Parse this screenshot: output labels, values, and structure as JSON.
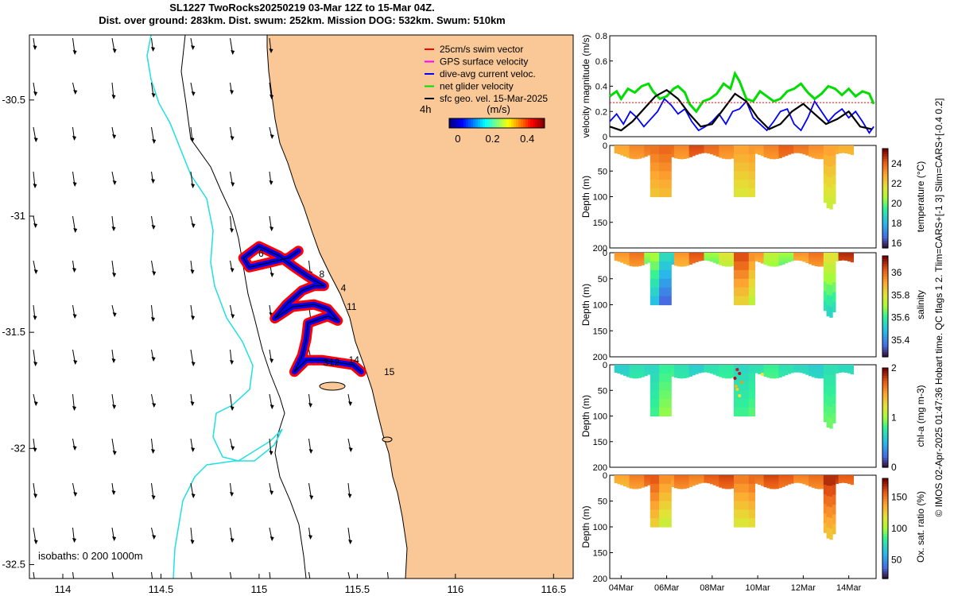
{
  "header": {
    "title_line1": "SL1227 TwoRocks20250219 03-Mar 12Z to 15-Mar 04Z.",
    "title_line2": "Dist. over ground: 283km. Dist. swum: 252km. Mission DOG: 532km. Swum: 510km"
  },
  "side_note": "© IMOS 02-Apr-2025 01:47:36 Hobart time. QC flags 1  2. Tlim=CARS+[-1 3] Slim=CARS+[-0.4 0.2]",
  "colors": {
    "land": "#f9c896",
    "isobath_0": "#000000",
    "isobath_200": "#000000",
    "isobath_1000": "#20e0e0",
    "swim_vector": "#ff0000",
    "gps_velocity": "#ff00ff",
    "dive_avg_current": "#0000ff",
    "net_glider_velocity": "#00dd00",
    "sfc_geo_vel": "#000000"
  },
  "chart_data": [
    {
      "type": "map",
      "name": "track_map",
      "x_ticks": [
        "114",
        "114.5",
        "115",
        "115.5",
        "116",
        "116.5"
      ],
      "x_tick_values": [
        114,
        114.5,
        115,
        115.5,
        116,
        116.5
      ],
      "xlim": [
        113.83,
        116.6
      ],
      "y_ticks": [
        "-30.5",
        "-31",
        "-31.5",
        "-32",
        "-32.5"
      ],
      "y_tick_values": [
        -30.5,
        -31,
        -31.5,
        -32,
        -32.5
      ],
      "ylim": [
        -32.56,
        -30.22
      ],
      "legend": [
        {
          "label": "25cm/s swim vector",
          "color": "#ff0000"
        },
        {
          "label": "GPS surface velocity",
          "color": "#ff00ff"
        },
        {
          "label": "dive-avg current veloc.",
          "color": "#0000ff"
        },
        {
          "label": "net glider velocity",
          "color": "#00dd00"
        },
        {
          "label": "sfc geo. vel. 15-Mar-2025",
          "color": "#000000"
        }
      ],
      "legend_position": "top-right",
      "scale_label": "4h",
      "colorbar": {
        "title": "(m/s)",
        "ticks": [
          "0",
          "0.2",
          "0.4"
        ],
        "tick_values": [
          0,
          0.2,
          0.4
        ],
        "range": [
          -0.05,
          0.5
        ]
      },
      "isobaths_label": "isobaths: 0   200  1000m",
      "day_labels": [
        {
          "text": "4",
          "lon": 115.4,
          "lat": -31.31
        },
        {
          "text": "6",
          "lon": 114.98,
          "lat": -31.16
        },
        {
          "text": "8",
          "lon": 115.29,
          "lat": -31.25
        },
        {
          "text": "11",
          "lon": 115.43,
          "lat": -31.39
        },
        {
          "text": "12",
          "lon": 115.34,
          "lat": -31.63
        },
        {
          "text": "3",
          "lon": 115.31,
          "lat": -31.63
        },
        {
          "text": "14",
          "lon": 115.44,
          "lat": -31.62
        },
        {
          "text": "15",
          "lon": 115.62,
          "lat": -31.67
        }
      ],
      "track": [
        [
          115.52,
          -31.67
        ],
        [
          115.48,
          -31.64
        ],
        [
          115.4,
          -31.63
        ],
        [
          115.32,
          -31.62
        ],
        [
          115.24,
          -31.62
        ],
        [
          115.18,
          -31.67
        ],
        [
          115.22,
          -31.6
        ],
        [
          115.24,
          -31.53
        ],
        [
          115.25,
          -31.46
        ],
        [
          115.35,
          -31.43
        ],
        [
          115.4,
          -31.45
        ],
        [
          115.35,
          -31.4
        ],
        [
          115.28,
          -31.38
        ],
        [
          115.17,
          -31.39
        ],
        [
          115.08,
          -31.44
        ],
        [
          115.14,
          -31.38
        ],
        [
          115.22,
          -31.32
        ],
        [
          115.28,
          -31.3
        ],
        [
          115.33,
          -31.3
        ],
        [
          115.25,
          -31.26
        ],
        [
          115.18,
          -31.22
        ],
        [
          115.1,
          -31.17
        ],
        [
          115.0,
          -31.13
        ],
        [
          114.92,
          -31.18
        ],
        [
          114.95,
          -31.22
        ],
        [
          115.05,
          -31.2
        ],
        [
          115.15,
          -31.18
        ],
        [
          115.2,
          -31.15
        ]
      ]
    },
    {
      "type": "line",
      "name": "velocity_magnitude",
      "ylabel": "velocity magnitude (m/s)",
      "ylim": [
        0,
        0.8
      ],
      "y_ticks": [
        "0",
        "0.2",
        "0.4",
        "0.6",
        "0.8"
      ],
      "y_tick_values": [
        0,
        0.2,
        0.4,
        0.6,
        0.8
      ],
      "x_range_days": [
        3.5,
        15.2
      ],
      "series": [
        {
          "name": "net glider velocity",
          "color": "#00dd00",
          "x": [
            3.5,
            3.8,
            4.0,
            4.3,
            4.6,
            4.9,
            5.2,
            5.4,
            5.7,
            6.0,
            6.3,
            6.5,
            6.8,
            7.0,
            7.3,
            7.6,
            7.9,
            8.2,
            8.5,
            8.8,
            9.0,
            9.2,
            9.5,
            9.8,
            10.1,
            10.4,
            10.7,
            11.0,
            11.3,
            11.6,
            11.9,
            12.2,
            12.5,
            12.8,
            13.1,
            13.4,
            13.7,
            14.0,
            14.3,
            14.6,
            14.9,
            15.1
          ],
          "values": [
            0.32,
            0.36,
            0.3,
            0.38,
            0.35,
            0.4,
            0.42,
            0.36,
            0.3,
            0.32,
            0.38,
            0.4,
            0.35,
            0.26,
            0.2,
            0.28,
            0.3,
            0.34,
            0.42,
            0.38,
            0.5,
            0.44,
            0.3,
            0.28,
            0.36,
            0.32,
            0.28,
            0.3,
            0.36,
            0.38,
            0.42,
            0.35,
            0.3,
            0.34,
            0.4,
            0.38,
            0.33,
            0.38,
            0.32,
            0.36,
            0.34,
            0.26
          ]
        },
        {
          "name": "dive-avg current veloc.",
          "color": "#0000ff",
          "x": [
            3.5,
            3.8,
            4.1,
            4.4,
            4.7,
            5.0,
            5.3,
            5.6,
            5.9,
            6.2,
            6.5,
            6.8,
            7.1,
            7.4,
            7.7,
            8.0,
            8.3,
            8.6,
            8.9,
            9.2,
            9.5,
            9.8,
            10.1,
            10.4,
            10.7,
            11.0,
            11.3,
            11.6,
            11.9,
            12.2,
            12.5,
            12.8,
            13.1,
            13.4,
            13.7,
            14.0,
            14.3,
            14.6,
            14.9,
            15.1
          ],
          "values": [
            0.12,
            0.18,
            0.1,
            0.2,
            0.15,
            0.08,
            0.14,
            0.2,
            0.3,
            0.25,
            0.18,
            0.22,
            0.12,
            0.05,
            0.08,
            0.12,
            0.18,
            0.1,
            0.2,
            0.22,
            0.28,
            0.15,
            0.1,
            0.05,
            0.12,
            0.2,
            0.22,
            0.1,
            0.05,
            0.15,
            0.28,
            0.2,
            0.12,
            0.18,
            0.22,
            0.15,
            0.2,
            0.12,
            0.03,
            0.08
          ]
        },
        {
          "name": "sfc geo. vel.",
          "color": "#000000",
          "x": [
            3.5,
            4.0,
            4.5,
            5.0,
            5.5,
            6.0,
            6.5,
            7.0,
            7.5,
            8.0,
            8.5,
            9.0,
            9.5,
            10.0,
            10.5,
            11.0,
            11.5,
            12.0,
            12.5,
            13.0,
            13.5,
            14.0,
            14.5,
            15.0
          ],
          "values": [
            0.08,
            0.05,
            0.12,
            0.22,
            0.32,
            0.37,
            0.3,
            0.18,
            0.08,
            0.1,
            0.22,
            0.34,
            0.28,
            0.15,
            0.06,
            0.1,
            0.2,
            0.26,
            0.18,
            0.1,
            0.14,
            0.2,
            0.08,
            0.06
          ]
        },
        {
          "name": "swim speed",
          "color": "#ff0000",
          "x": [
            3.5,
            15.1
          ],
          "values": [
            0.27,
            0.27
          ]
        }
      ]
    },
    {
      "type": "heatmap",
      "name": "temperature",
      "ylabel": "Depth (m)",
      "clabel": "temperature (°C)",
      "ylim": [
        0,
        200
      ],
      "y_ticks": [
        "0",
        "50",
        "100",
        "150",
        "200"
      ],
      "y_tick_values": [
        0,
        50,
        100,
        150,
        200
      ],
      "crange": [
        15.5,
        25.5
      ],
      "colorbar_ticks": [
        "16",
        "18",
        "20",
        "22",
        "24"
      ],
      "colorbar_tick_values": [
        16,
        18,
        20,
        22,
        24
      ],
      "surface_values": [
        23.0,
        23.5,
        23.8,
        24.0,
        23.5,
        24.5,
        24.0,
        23.5,
        23.0,
        23.2,
        23.6,
        24.2,
        23.8,
        23.4,
        23.0,
        22.8
      ]
    },
    {
      "type": "heatmap",
      "name": "salinity",
      "ylabel": "Depth (m)",
      "clabel": "salinity",
      "ylim": [
        0,
        200
      ],
      "y_ticks": [
        "0",
        "50",
        "100",
        "150",
        "200"
      ],
      "y_tick_values": [
        0,
        50,
        100,
        150,
        200
      ],
      "crange": [
        35.25,
        36.15
      ],
      "colorbar_ticks": [
        "35.4",
        "35.6",
        "35.8",
        "36"
      ],
      "colorbar_tick_values": [
        35.4,
        35.6,
        35.8,
        36
      ],
      "surface_values": [
        35.95,
        36.0,
        35.7,
        35.55,
        35.95,
        36.05,
        35.7,
        35.8,
        36.05,
        35.95,
        35.75,
        35.7,
        35.95,
        36.0,
        35.8,
        36.1
      ]
    },
    {
      "type": "heatmap",
      "name": "chlorophyll",
      "ylabel": "Depth (m)",
      "clabel": "chl-a (mg m-3)",
      "ylim": [
        0,
        200
      ],
      "y_ticks": [
        "0",
        "50",
        "100",
        "150",
        "200"
      ],
      "y_tick_values": [
        0,
        50,
        100,
        150,
        200
      ],
      "crange": [
        0,
        2
      ],
      "colorbar_ticks": [
        "0",
        "1",
        "2"
      ],
      "colorbar_tick_values": [
        0,
        1,
        2
      ],
      "surface_values": [
        0.6,
        0.7,
        0.65,
        0.8,
        0.7,
        0.6,
        0.7,
        0.75,
        0.65,
        0.7,
        0.8,
        0.7,
        0.65,
        0.6,
        0.7,
        0.65
      ]
    },
    {
      "type": "heatmap",
      "name": "oxygen_saturation",
      "ylabel": "Depth (m)",
      "clabel": "Ox. sat. ratio (%)",
      "ylim": [
        0,
        200
      ],
      "y_ticks": [
        "0",
        "50",
        "100",
        "150",
        "200"
      ],
      "y_tick_values": [
        0,
        50,
        100,
        150,
        200
      ],
      "crange": [
        20,
        180
      ],
      "colorbar_ticks": [
        "50",
        "100",
        "150"
      ],
      "colorbar_tick_values": [
        50,
        100,
        150
      ],
      "surface_values": [
        140,
        150,
        160,
        145,
        155,
        150,
        160,
        165,
        150,
        155,
        165,
        160,
        150,
        155,
        170,
        160
      ],
      "x_ticks": [
        "04Mar",
        "06Mar",
        "08Mar",
        "10Mar",
        "12Mar",
        "14Mar"
      ],
      "x_tick_values": [
        4,
        6,
        8,
        10,
        12,
        14
      ]
    }
  ]
}
